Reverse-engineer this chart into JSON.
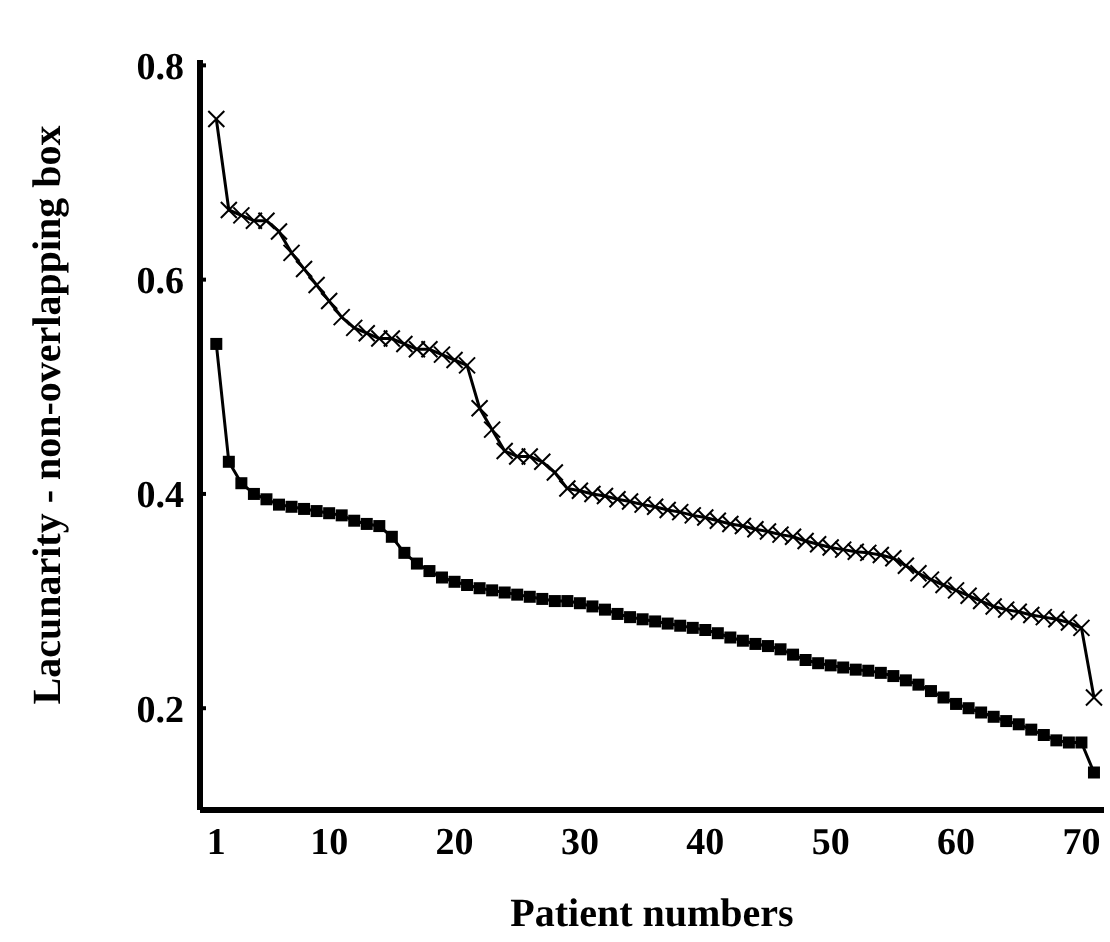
{
  "chart_data": {
    "type": "line",
    "xlabel": "Patient numbers",
    "ylabel": "Lacunarity - non-overlapping box",
    "xlim": [
      -0.3,
      71.8
    ],
    "ylim": [
      0.105,
      0.805
    ],
    "xticks": [
      1,
      10,
      20,
      30,
      40,
      50,
      60,
      70
    ],
    "yticks": [
      0.2,
      0.4,
      0.6,
      0.8
    ],
    "x": [
      1,
      2,
      3,
      4,
      5,
      6,
      7,
      8,
      9,
      10,
      11,
      12,
      13,
      14,
      15,
      16,
      17,
      18,
      19,
      20,
      21,
      22,
      23,
      24,
      25,
      26,
      27,
      28,
      29,
      30,
      31,
      32,
      33,
      34,
      35,
      36,
      37,
      38,
      39,
      40,
      41,
      42,
      43,
      44,
      45,
      46,
      47,
      48,
      49,
      50,
      51,
      52,
      53,
      54,
      55,
      56,
      57,
      58,
      59,
      60,
      61,
      62,
      63,
      64,
      65,
      66,
      67,
      68,
      69,
      70,
      71
    ],
    "series": [
      {
        "color": "#000000",
        "marker": "cross",
        "values": [
          0.75,
          0.665,
          0.66,
          0.655,
          0.655,
          0.645,
          0.625,
          0.61,
          0.595,
          0.58,
          0.565,
          0.555,
          0.55,
          0.545,
          0.545,
          0.54,
          0.535,
          0.535,
          0.53,
          0.525,
          0.52,
          0.48,
          0.46,
          0.44,
          0.435,
          0.435,
          0.43,
          0.42,
          0.405,
          0.403,
          0.4,
          0.398,
          0.395,
          0.393,
          0.39,
          0.388,
          0.385,
          0.383,
          0.38,
          0.378,
          0.375,
          0.372,
          0.37,
          0.367,
          0.365,
          0.362,
          0.36,
          0.356,
          0.353,
          0.35,
          0.348,
          0.346,
          0.345,
          0.343,
          0.34,
          0.333,
          0.326,
          0.32,
          0.315,
          0.31,
          0.305,
          0.3,
          0.295,
          0.292,
          0.29,
          0.287,
          0.285,
          0.283,
          0.28,
          0.275,
          0.21
        ]
      },
      {
        "color": "#000000",
        "marker": "square",
        "values": [
          0.54,
          0.43,
          0.41,
          0.4,
          0.395,
          0.39,
          0.388,
          0.386,
          0.384,
          0.382,
          0.38,
          0.375,
          0.372,
          0.37,
          0.36,
          0.345,
          0.335,
          0.328,
          0.322,
          0.318,
          0.315,
          0.312,
          0.31,
          0.308,
          0.306,
          0.304,
          0.302,
          0.3,
          0.3,
          0.298,
          0.295,
          0.292,
          0.288,
          0.285,
          0.283,
          0.281,
          0.279,
          0.277,
          0.275,
          0.273,
          0.27,
          0.266,
          0.263,
          0.26,
          0.258,
          0.255,
          0.25,
          0.245,
          0.242,
          0.24,
          0.238,
          0.236,
          0.235,
          0.233,
          0.23,
          0.226,
          0.222,
          0.216,
          0.21,
          0.204,
          0.2,
          0.196,
          0.192,
          0.188,
          0.185,
          0.18,
          0.175,
          0.17,
          0.168,
          0.168,
          0.14
        ]
      }
    ]
  }
}
